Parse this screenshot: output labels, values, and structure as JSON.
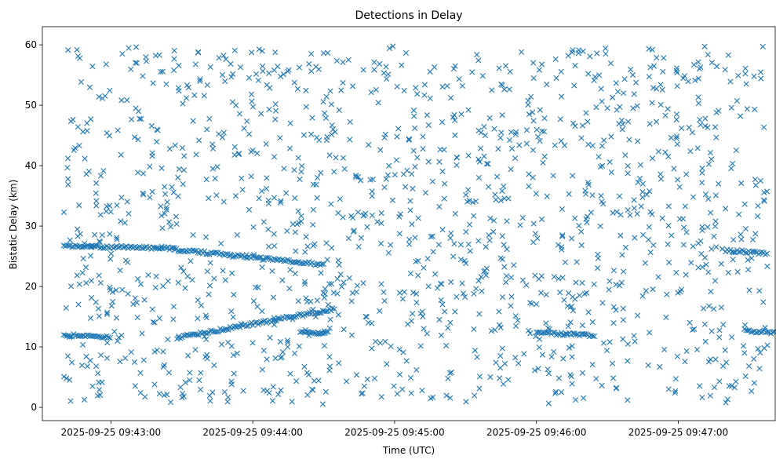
{
  "chart_data": {
    "type": "scatter",
    "title": "Detections in Delay",
    "xlabel": "Time (UTC)",
    "ylabel": "Bistatic Delay (km)",
    "x_range": [
      "2025-09-25 09:42:31",
      "2025-09-25 09:47:41"
    ],
    "ylim": [
      -2.2,
      63.0
    ],
    "x_ticks": [
      "2025-09-25 09:43:00",
      "2025-09-25 09:44:00",
      "2025-09-25 09:45:00",
      "2025-09-25 09:46:00",
      "2025-09-25 09:47:00"
    ],
    "y_ticks": [
      0,
      10,
      20,
      30,
      40,
      50,
      60
    ],
    "marker": "x",
    "color": "#1f77b4",
    "grid": false,
    "legend": "none",
    "clutter_points_approx": 1400,
    "tracks": [
      {
        "x_start": "2025-09-25 09:42:40",
        "x_end": "2025-09-25 09:43:00",
        "y_start": 12.0,
        "y_end": 11.6
      },
      {
        "x_start": "2025-09-25 09:42:40",
        "x_end": "2025-09-25 09:43:27",
        "y_start": 26.7,
        "y_end": 26.3
      },
      {
        "x_start": "2025-09-25 09:43:27",
        "x_end": "2025-09-25 09:44:30",
        "y_start": 26.1,
        "y_end": 23.6
      },
      {
        "x_start": "2025-09-25 09:43:28",
        "x_end": "2025-09-25 09:44:35",
        "y_start": 11.5,
        "y_end": 16.3
      },
      {
        "x_start": "2025-09-25 09:44:20",
        "x_end": "2025-09-25 09:44:32",
        "y_start": 12.3,
        "y_end": 12.3
      },
      {
        "x_start": "2025-09-25 09:46:00",
        "x_end": "2025-09-25 09:46:25",
        "y_start": 12.3,
        "y_end": 11.9
      },
      {
        "x_start": "2025-09-25 09:47:20",
        "x_end": "2025-09-25 09:47:38",
        "y_start": 26.0,
        "y_end": 25.5
      },
      {
        "x_start": "2025-09-25 09:47:28",
        "x_end": "2025-09-25 09:47:41",
        "y_start": 12.7,
        "y_end": 12.4
      }
    ]
  }
}
